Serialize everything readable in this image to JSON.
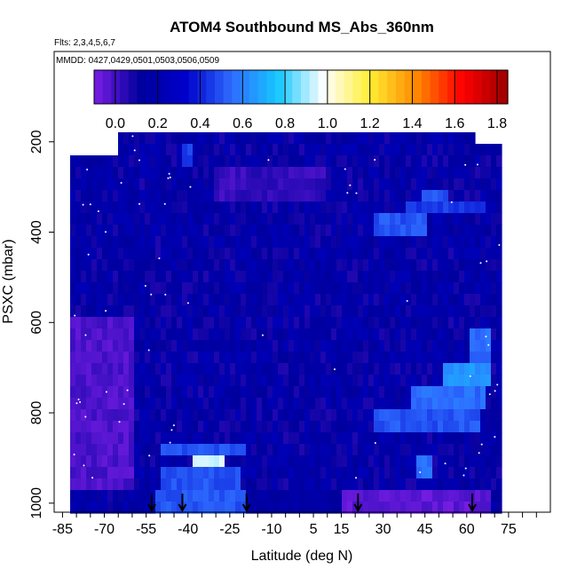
{
  "chart_data": {
    "type": "heatmap",
    "title": "ATOM4 Southbound MS_Abs_360nm",
    "flights_note": "Flts: 2,3,4,5,6,7",
    "dates_note": "MMDD: 0427,0429,0501,0503,0506,0509",
    "xlabel": "Latitude (deg N)",
    "ylabel": "PSXC (mbar)",
    "xlim": [
      -88,
      90
    ],
    "ylim": [
      1020,
      0
    ],
    "x_ticks_labeled": [
      -85,
      -70,
      -55,
      -40,
      -25,
      -10,
      5,
      15,
      30,
      45,
      60,
      75
    ],
    "y_ticks": [
      200,
      400,
      600,
      800,
      1000
    ],
    "colorbar": {
      "min": -0.1,
      "max": 1.85,
      "ticks": [
        0.0,
        0.2,
        0.4,
        0.6,
        0.8,
        1.0,
        1.2,
        1.4,
        1.6,
        1.8
      ],
      "colors": [
        "#7a1ee6",
        "#00009c",
        "#0000cc",
        "#2e6cff",
        "#16c8ff",
        "#ffffff",
        "#ffee33",
        "#ff8a00",
        "#ff0000",
        "#9c0000"
      ]
    },
    "background_value": 0.15,
    "domain": [
      {
        "lat0": -82,
        "lat1": -66,
        "p0": 240,
        "p1": 975
      },
      {
        "lat0": -66,
        "lat1": -45,
        "p0": 185,
        "p1": 975
      },
      {
        "lat0": -45,
        "lat1": 62,
        "p0": 175,
        "p1": 975
      },
      {
        "lat0": 62,
        "lat1": 72,
        "p0": 195,
        "p1": 975
      }
    ],
    "features": [
      {
        "lat0": -43,
        "lat1": -38,
        "p0": 205,
        "p1": 265,
        "v": 0.45
      },
      {
        "lat0": -30,
        "lat1": 10,
        "p0": 260,
        "p1": 335,
        "v": 0.02
      },
      {
        "lat0": 44,
        "lat1": 54,
        "p0": 300,
        "p1": 330,
        "v": 0.5
      },
      {
        "lat0": 26,
        "lat1": 45,
        "p0": 355,
        "p1": 405,
        "v": 0.5
      },
      {
        "lat0": 38,
        "lat1": 66,
        "p0": 325,
        "p1": 345,
        "v": 0.45
      },
      {
        "lat0": 61,
        "lat1": 69,
        "p0": 615,
        "p1": 705,
        "v": 0.55
      },
      {
        "lat0": 52,
        "lat1": 68,
        "p0": 700,
        "p1": 750,
        "v": 0.65
      },
      {
        "lat0": 40,
        "lat1": 66,
        "p0": 740,
        "p1": 800,
        "v": 0.55
      },
      {
        "lat0": 27,
        "lat1": 64,
        "p0": 800,
        "p1": 840,
        "v": 0.5
      },
      {
        "lat0": -50,
        "lat1": -20,
        "p0": 860,
        "p1": 905,
        "v": 0.5
      },
      {
        "lat0": -38,
        "lat1": -26,
        "p0": 905,
        "p1": 950,
        "v": 0.95
      },
      {
        "lat0": -36,
        "lat1": -31,
        "p0": 915,
        "p1": 945,
        "v": 1.85
      },
      {
        "lat0": -50,
        "lat1": -22,
        "p0": 925,
        "p1": 975,
        "v": 0.5
      },
      {
        "lat0": 41,
        "lat1": 48,
        "p0": 905,
        "p1": 940,
        "v": 0.55
      },
      {
        "lat0": -82,
        "lat1": -60,
        "p0": 600,
        "p1": 980,
        "v": -0.02
      },
      {
        "lat0": -52,
        "lat1": -20,
        "p0": 975,
        "p1": 1015,
        "v": 0.5
      },
      {
        "lat0": -20,
        "lat1": 15,
        "p0": 975,
        "p1": 1015,
        "v": 0.15
      },
      {
        "lat0": 15,
        "lat1": 69,
        "p0": 975,
        "p1": 1015,
        "v": -0.05
      }
    ],
    "flight_markers_lat": [
      -53,
      -42,
      -19,
      21,
      62
    ]
  }
}
